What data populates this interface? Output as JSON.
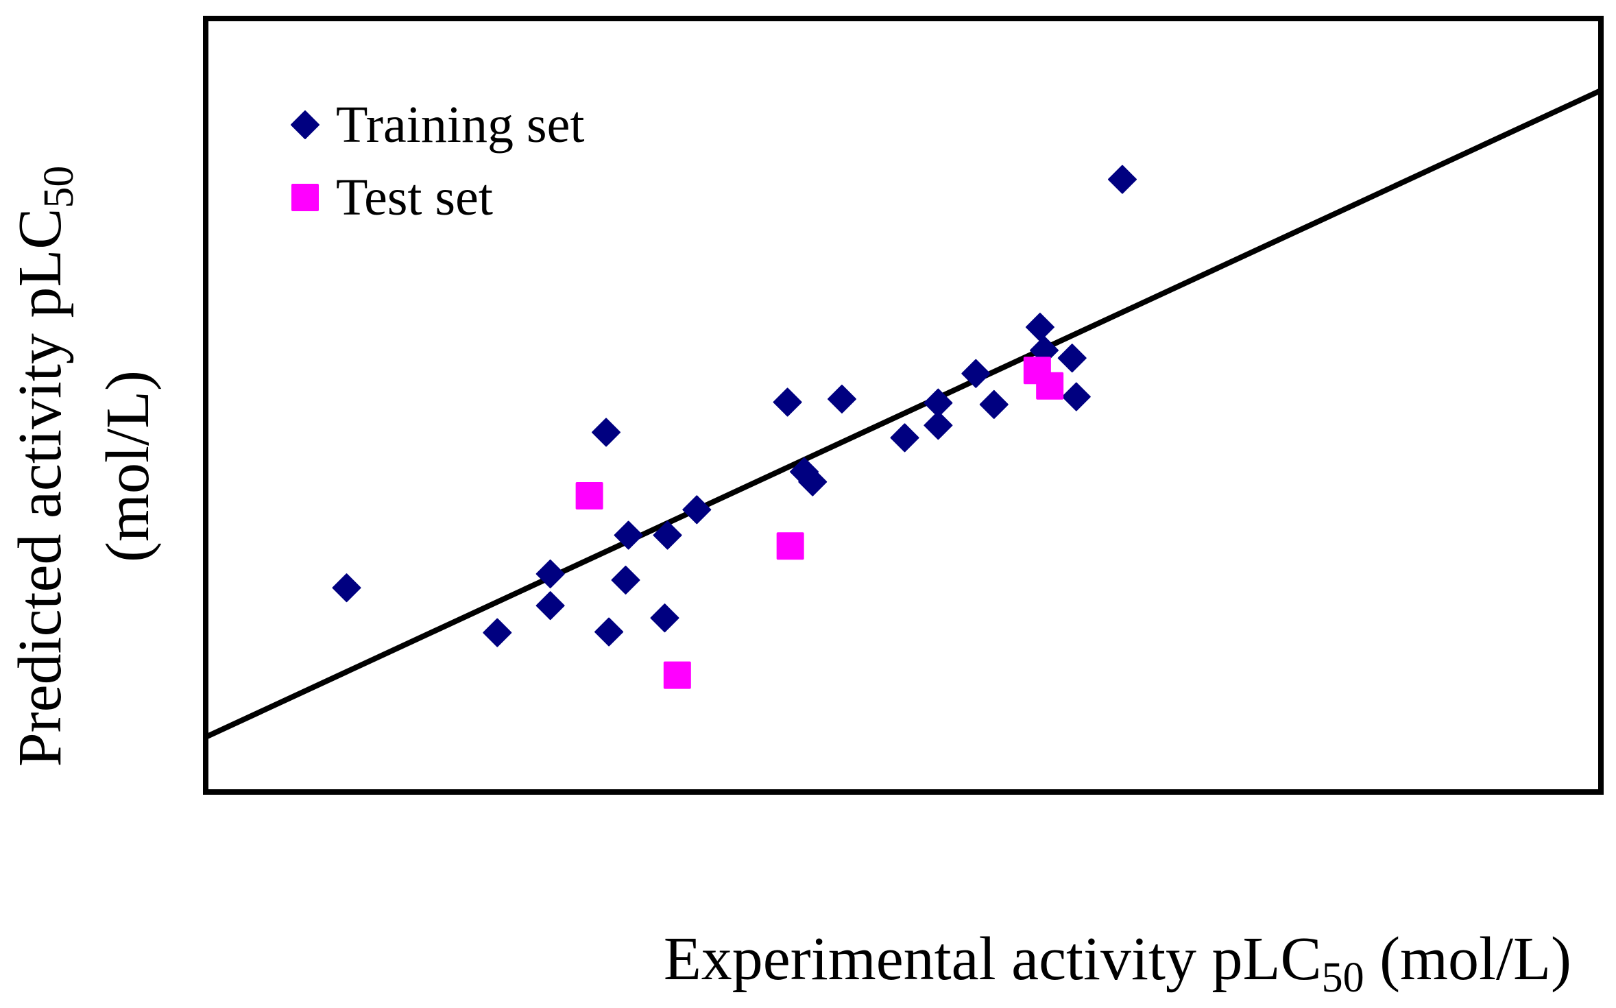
{
  "chart_data": {
    "type": "scatter",
    "title": "",
    "xlabel": {
      "main": "Experimental activity pLC",
      "subscript": "50",
      "suffix": " (mol/L)"
    },
    "ylabel": {
      "line1_main": "Predicted activity pLC",
      "line1_subscript": "50",
      "line2": "(mol/L)"
    },
    "axis_units": "normalized fraction of axis range (no tick labels shown)",
    "xlim": [
      0,
      1
    ],
    "ylim": [
      0,
      1
    ],
    "grid": false,
    "legend_position": "top-left",
    "series": [
      {
        "name": "Training set",
        "marker": "diamond",
        "color": "#000080",
        "points": [
          [
            0.101,
            0.264
          ],
          [
            0.209,
            0.206
          ],
          [
            0.247,
            0.282
          ],
          [
            0.247,
            0.241
          ],
          [
            0.287,
            0.465
          ],
          [
            0.289,
            0.207
          ],
          [
            0.301,
            0.274
          ],
          [
            0.303,
            0.332
          ],
          [
            0.329,
            0.225
          ],
          [
            0.331,
            0.332
          ],
          [
            0.352,
            0.365
          ],
          [
            0.417,
            0.504
          ],
          [
            0.429,
            0.414
          ],
          [
            0.435,
            0.401
          ],
          [
            0.456,
            0.508
          ],
          [
            0.501,
            0.458
          ],
          [
            0.525,
            0.503
          ],
          [
            0.525,
            0.474
          ],
          [
            0.552,
            0.541
          ],
          [
            0.565,
            0.501
          ],
          [
            0.598,
            0.601
          ],
          [
            0.601,
            0.571
          ],
          [
            0.621,
            0.561
          ],
          [
            0.624,
            0.511
          ],
          [
            0.657,
            0.792
          ]
        ]
      },
      {
        "name": "Test set",
        "marker": "square",
        "color": "#FF00FF",
        "points": [
          [
            0.275,
            0.383
          ],
          [
            0.338,
            0.151
          ],
          [
            0.419,
            0.318
          ],
          [
            0.596,
            0.545
          ],
          [
            0.605,
            0.525
          ]
        ]
      }
    ],
    "fit_line": {
      "name": "regression line",
      "color": "#000000",
      "points": [
        [
          0,
          0.071
        ],
        [
          1,
          0.907
        ]
      ]
    }
  }
}
